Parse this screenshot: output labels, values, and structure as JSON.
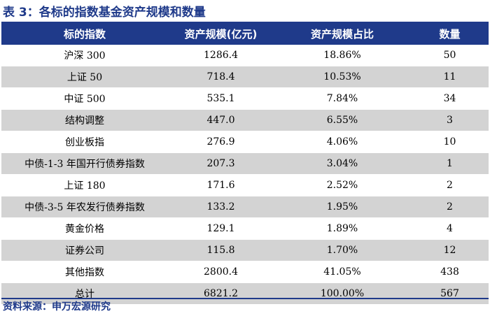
{
  "title": "表 3：各标的指数基金资产规模和数量",
  "table": {
    "headers": [
      "标的指数",
      "资产规模(亿元)",
      "资产规模占比",
      "数量"
    ],
    "rows": [
      [
        "沪深 300",
        "1286.4",
        "18.86%",
        "50"
      ],
      [
        "上证 50",
        "718.4",
        "10.53%",
        "11"
      ],
      [
        "中证 500",
        "535.1",
        "7.84%",
        "34"
      ],
      [
        "结构调整",
        "447.0",
        "6.55%",
        "3"
      ],
      [
        "创业板指",
        "276.9",
        "4.06%",
        "10"
      ],
      [
        "中债-1-3 年国开行债券指数",
        "207.3",
        "3.04%",
        "1"
      ],
      [
        "上证 180",
        "171.6",
        "2.52%",
        "2"
      ],
      [
        "中债-3-5 年农发行债券指数",
        "133.2",
        "1.95%",
        "2"
      ],
      [
        "黄金价格",
        "129.1",
        "1.89%",
        "4"
      ],
      [
        "证券公司",
        "115.8",
        "1.70%",
        "12"
      ],
      [
        "其他指数",
        "2800.4",
        "41.05%",
        "438"
      ],
      [
        "总计",
        "6821.2",
        "100.00%",
        "567"
      ]
    ]
  },
  "source": "资料来源：申万宏源研究",
  "colors": {
    "header_bg": "#1f3a8a",
    "stripe": "#d3d3d3",
    "title": "#1f3a8a"
  }
}
